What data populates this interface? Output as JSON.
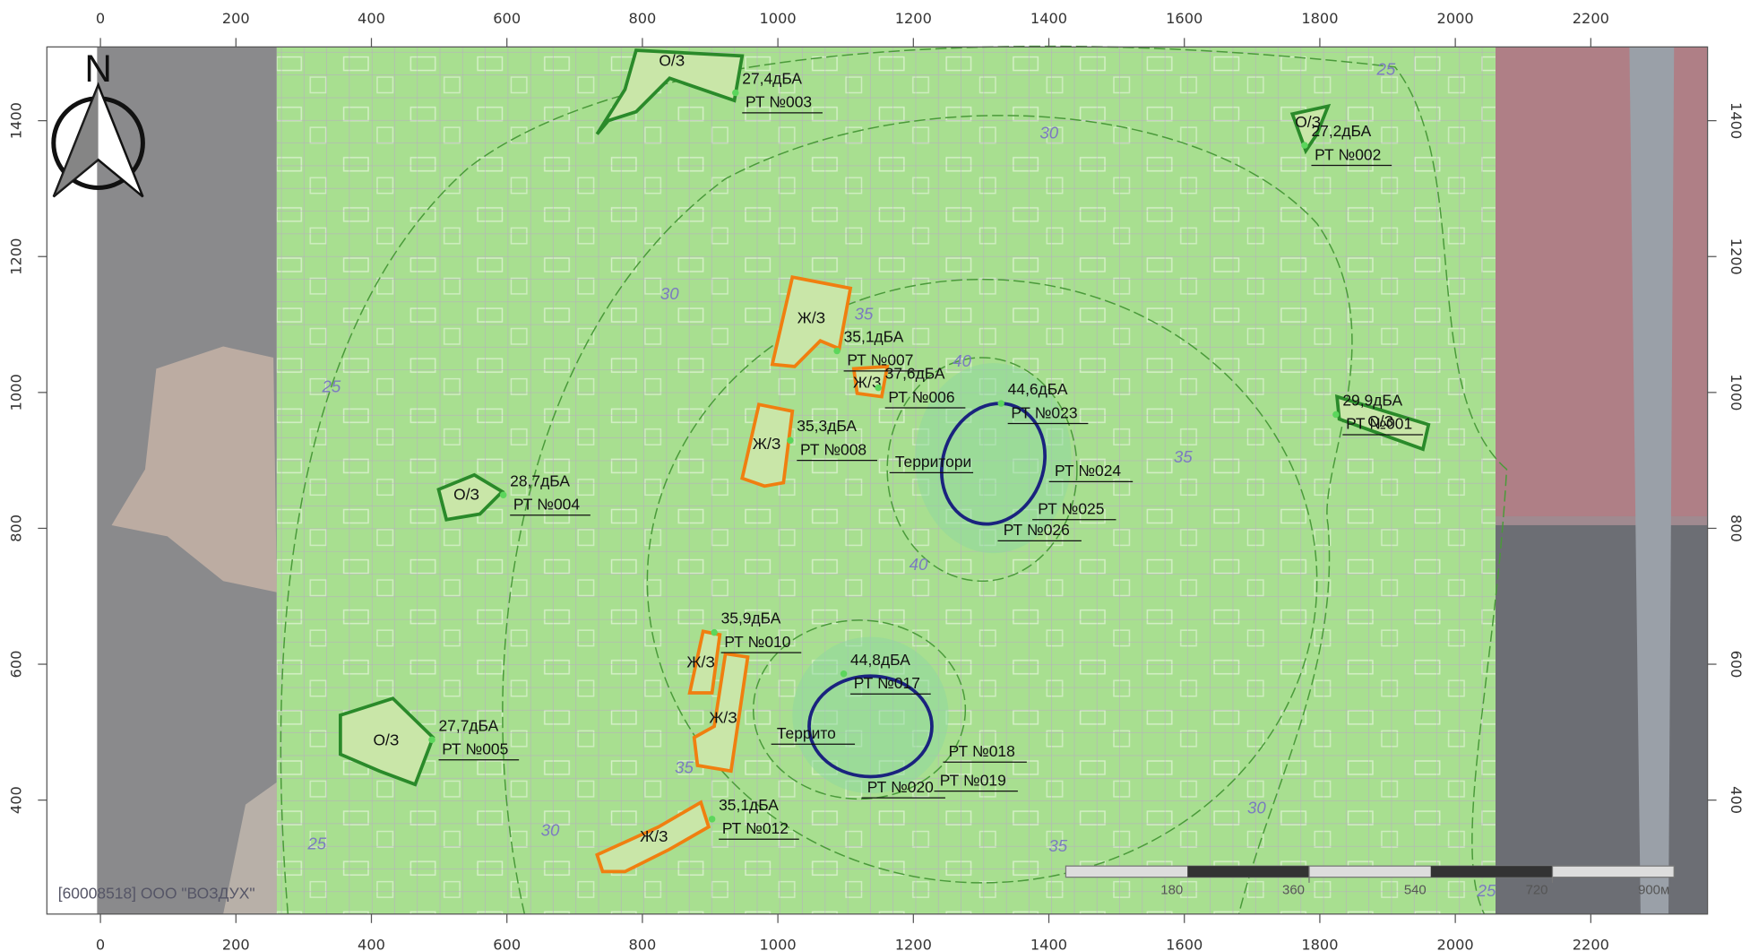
{
  "north": "N",
  "x_ticks": [
    0,
    200,
    400,
    600,
    800,
    1000,
    1200,
    1400,
    1600,
    1800,
    2000,
    2200
  ],
  "y_ticks": [
    400,
    600,
    800,
    1000,
    1200,
    1400
  ],
  "zones": [
    "О/З",
    "О/З",
    "О/З",
    "О/З",
    "О/З",
    "Ж/З",
    "Ж/З",
    "Ж/З",
    "Ж/З",
    "Ж/З",
    "Ж/З"
  ],
  "noise_points": [
    {
      "level": "27,4дБА",
      "name": "РТ №003"
    },
    {
      "level": "27,2дБА",
      "name": "РТ №002"
    },
    {
      "level": "29,9дБА",
      "name": "РТ №001"
    },
    {
      "level": "28,7дБА",
      "name": "РТ №004"
    },
    {
      "level": "27,7дБА",
      "name": "РТ №005"
    },
    {
      "level": "35,1дБА",
      "name": "РТ №007"
    },
    {
      "level": "37,6дБА",
      "name": "РТ №006"
    },
    {
      "level": "35,3дБА",
      "name": "РТ №008"
    },
    {
      "level": "35,1дБА",
      "name": "РТ №012"
    },
    {
      "level": "44,6дБА",
      "name": "РТ №023"
    },
    {
      "level": "35,9дБА",
      "name": "РТ №010"
    },
    {
      "level": "44,8дБА",
      "name": "РТ №017"
    }
  ],
  "other_points": [
    "РТ №024",
    "РТ №025",
    "РТ №026",
    "РТ №018",
    "РТ №019",
    "РТ №020",
    "Территори",
    "Террито"
  ],
  "contours": [
    25,
    25,
    25,
    25,
    30,
    30,
    30,
    30,
    35,
    35,
    35,
    35,
    40,
    40
  ],
  "scale_bar": {
    "ticks": [
      180,
      360,
      540,
      720
    ],
    "end": "900м"
  },
  "organization": "[60008518] ООО \"ВОЗДУХ\""
}
